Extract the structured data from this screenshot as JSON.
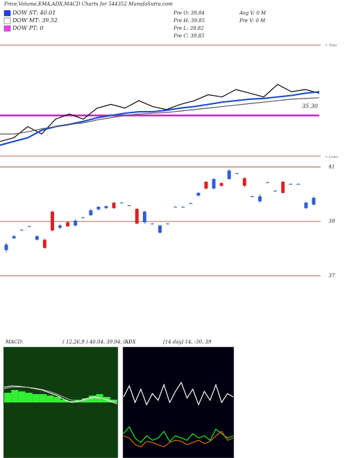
{
  "header": {
    "title": "Price,Volume,EMA,ADX,MACD Charts for 544352 MunafaSutra.com",
    "legend": [
      {
        "label": "DOW ST: 40.01",
        "color": "#2040ff"
      },
      {
        "label": "DOW MT: 39.52",
        "color": "#ffffff"
      },
      {
        "label": "DOW PT: 0",
        "color": "#ff40ff"
      }
    ],
    "stats": [
      "Pre O: 39.84",
      "Pre H: 39.85",
      "Pre L: 39.82",
      "Pre C: 39.85",
      "Avg V: 0 M",
      "Pre V: 0 M"
    ]
  },
  "chart_data": [
    {
      "type": "line",
      "annotations": [
        "< Tops",
        "< Lows"
      ],
      "ylim": [
        27.5,
        48.8
      ],
      "reference": {
        "value": 35.3,
        "label": "35.30",
        "color": "#c020c0"
      },
      "series": [
        {
          "color": "#000000",
          "values": [
            30.32,
            31.03,
            33.17,
            31.74,
            34.59,
            35.58,
            34.59,
            36.72,
            37.43,
            36.72,
            38.14,
            37.01,
            36.44,
            37.43,
            38.14,
            39.28,
            38.86,
            40.28,
            39.57,
            38.86,
            41.27,
            39.85,
            40.28,
            39.57
          ]
        },
        {
          "color": "#1a50d0",
          "values": [
            29.61,
            30.32,
            31.03,
            32.46,
            33.17,
            33.59,
            34.16,
            34.87,
            35.3,
            35.73,
            36.01,
            36.01,
            36.3,
            36.72,
            37.01,
            37.43,
            37.86,
            38.14,
            38.43,
            38.57,
            38.86,
            39.14,
            39.57,
            39.85
          ]
        },
        {
          "color": "#555555",
          "values": [
            31.74,
            31.74,
            32.17,
            32.74,
            33.17,
            33.59,
            33.88,
            34.45,
            34.87,
            35.3,
            35.58,
            35.73,
            35.87,
            36.15,
            36.44,
            36.72,
            37.01,
            37.29,
            37.58,
            37.86,
            38.14,
            38.43,
            38.57,
            38.71
          ]
        }
      ]
    },
    {
      "type": "candlestick",
      "ylim": [
        34.9,
        41.4
      ],
      "yticks": [
        41,
        39,
        37
      ],
      "up_color": "#2f5fd8",
      "down_color": "#e02020",
      "open": [
        37.95,
        38.38,
        38.69,
        38.82,
        38.33,
        38.33,
        39.36,
        38.77,
        38.97,
        38.85,
        39.15,
        39.23,
        39.44,
        39.49,
        39.69,
        39.69,
        39.59,
        39.46,
        38.97,
        38.92,
        38.59,
        38.92,
        39.54,
        39.54,
        39.67,
        39.95,
        40.46,
        40.21,
        40.41,
        40.56,
        40.77,
        40.59,
        39.92,
        39.74,
        40.44,
        40.13,
        40.46,
        40.38,
        40.38,
        39.49,
        39.62
      ],
      "high": [
        38.21,
        38.5,
        38.72,
        38.84,
        38.49,
        38.36,
        39.4,
        38.9,
        39.0,
        39.08,
        39.17,
        39.46,
        39.56,
        39.6,
        39.72,
        39.71,
        39.61,
        39.5,
        39.4,
        38.94,
        38.88,
        38.94,
        39.56,
        39.56,
        39.69,
        40.08,
        40.49,
        40.6,
        40.44,
        40.92,
        40.79,
        40.62,
        39.94,
        40.0,
        40.46,
        40.15,
        40.49,
        40.4,
        40.4,
        39.72,
        39.92
      ],
      "low": [
        37.87,
        38.36,
        38.67,
        38.8,
        38.3,
        38.0,
        38.64,
        38.72,
        38.8,
        38.82,
        39.13,
        39.2,
        39.41,
        39.46,
        39.46,
        39.67,
        39.57,
        38.9,
        38.92,
        38.9,
        38.56,
        38.9,
        39.52,
        39.52,
        39.65,
        39.92,
        40.18,
        40.18,
        40.28,
        40.53,
        40.75,
        40.28,
        39.9,
        39.7,
        40.42,
        40.11,
        40.03,
        40.36,
        40.36,
        39.46,
        39.59
      ],
      "close": [
        38.15,
        38.46,
        38.69,
        38.82,
        38.46,
        38.03,
        38.67,
        38.85,
        38.82,
        39.03,
        39.15,
        39.41,
        39.54,
        39.56,
        39.49,
        39.69,
        39.59,
        38.92,
        39.36,
        38.92,
        38.85,
        38.92,
        39.54,
        39.54,
        39.67,
        40.05,
        40.21,
        40.56,
        40.31,
        40.87,
        40.77,
        40.31,
        39.92,
        39.92,
        40.44,
        40.13,
        40.05,
        40.38,
        40.38,
        39.69,
        39.87
      ]
    },
    {
      "type": "macd",
      "title": "MACD:",
      "subtitle": "( 12,26,9 ) 40.04, 39.94, 0.1",
      "ylim": [
        -2,
        2
      ],
      "hist_color": "#33ee33",
      "hist": [
        0.35,
        0.45,
        0.4,
        0.35,
        0.3,
        0.3,
        0.25,
        0.2,
        0.1,
        0.05,
        0.1,
        0.15,
        0.25,
        0.3,
        0.2,
        0.1
      ],
      "series": [
        {
          "color": "#ffffff",
          "values": [
            0.55,
            0.6,
            0.58,
            0.55,
            0.5,
            0.45,
            0.35,
            0.25,
            0.1,
            0.0,
            0.05,
            0.15,
            0.2,
            0.15,
            0.05,
            -0.05
          ]
        },
        {
          "color": "#bbbbbb",
          "values": [
            0.5,
            0.55,
            0.56,
            0.55,
            0.52,
            0.47,
            0.4,
            0.3,
            0.18,
            0.08,
            0.05,
            0.1,
            0.15,
            0.15,
            0.1,
            0.02
          ]
        }
      ]
    },
    {
      "type": "line",
      "title": "ADX",
      "subtitle": "[14 day] 14, -30, 39",
      "ylim": [
        0,
        100
      ],
      "series": [
        {
          "color": "#ffffff",
          "values": [
            55,
            65,
            50,
            62,
            48,
            58,
            52,
            66,
            50,
            60,
            68,
            54,
            62,
            48,
            60,
            52,
            66,
            50,
            58,
            55
          ]
        },
        {
          "color": "#22ee22",
          "values": [
            22,
            28,
            18,
            14,
            20,
            16,
            18,
            24,
            15,
            20,
            18,
            16,
            22,
            18,
            20,
            16,
            26,
            22,
            18,
            20
          ]
        },
        {
          "color": "#e07010",
          "values": [
            20,
            18,
            12,
            10,
            15,
            14,
            12,
            10,
            14,
            16,
            15,
            12,
            14,
            16,
            13,
            15,
            20,
            24,
            16,
            18
          ]
        }
      ]
    }
  ]
}
